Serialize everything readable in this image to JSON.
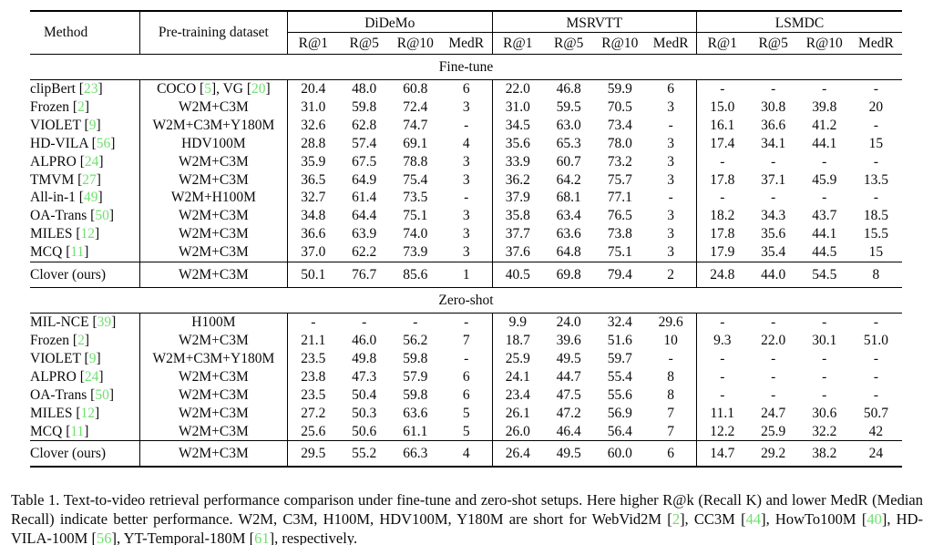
{
  "page": {
    "background": "#ffffff",
    "text_color": "#0a0a0a",
    "citation_color": "#6fe06f"
  },
  "table": {
    "header": {
      "method": "Method",
      "dataset": "Pre-training dataset"
    },
    "groups": [
      {
        "name": "DiDeMo",
        "metrics": [
          "R@1",
          "R@5",
          "R@10",
          "MedR"
        ]
      },
      {
        "name": "MSRVTT",
        "metrics": [
          "R@1",
          "R@5",
          "R@10",
          "MedR"
        ]
      },
      {
        "name": "LSMDC",
        "metrics": [
          "R@1",
          "R@5",
          "R@10",
          "MedR"
        ]
      }
    ],
    "sections": [
      {
        "label": "Fine-tune",
        "rows": [
          {
            "method": "clipBert [23]",
            "dataset": "COCO [5], VG [20]",
            "values": [
              "20.4",
              "48.0",
              "60.8",
              "6",
              "22.0",
              "46.8",
              "59.9",
              "6",
              "-",
              "-",
              "-",
              "-"
            ]
          },
          {
            "method": "Frozen [2]",
            "dataset": "W2M+C3M",
            "values": [
              "31.0",
              "59.8",
              "72.4",
              "3",
              "31.0",
              "59.5",
              "70.5",
              "3",
              "15.0",
              "30.8",
              "39.8",
              "20"
            ]
          },
          {
            "method": "VIOLET [9]",
            "dataset": "W2M+C3M+Y180M",
            "values": [
              "32.6",
              "62.8",
              "74.7",
              "-",
              "34.5",
              "63.0",
              "73.4",
              "-",
              "16.1",
              "36.6",
              "41.2",
              "-"
            ]
          },
          {
            "method": "HD-VILA [56]",
            "dataset": "HDV100M",
            "values": [
              "28.8",
              "57.4",
              "69.1",
              "4",
              "35.6",
              "65.3",
              "78.0",
              "3",
              "17.4",
              "34.1",
              "44.1",
              "15"
            ]
          },
          {
            "method": "ALPRO [24]",
            "dataset": "W2M+C3M",
            "values": [
              "35.9",
              "67.5",
              "78.8",
              "3",
              "33.9",
              "60.7",
              "73.2",
              "3",
              "-",
              "-",
              "-",
              "-"
            ]
          },
          {
            "method": "TMVM [27]",
            "dataset": "W2M+C3M",
            "values": [
              "36.5",
              "64.9",
              "75.4",
              "3",
              "36.2",
              "64.2",
              "75.7",
              "3",
              "17.8",
              "37.1",
              "45.9",
              "13.5"
            ]
          },
          {
            "method": "All-in-1 [49]",
            "dataset": "W2M+H100M",
            "values": [
              "32.7",
              "61.4",
              "73.5",
              "-",
              "37.9",
              "68.1",
              "77.1",
              "-",
              "-",
              "-",
              "-",
              "-"
            ]
          },
          {
            "method": "OA-Trans [50]",
            "dataset": "W2M+C3M",
            "values": [
              "34.8",
              "64.4",
              "75.1",
              "3",
              "35.8",
              "63.4",
              "76.5",
              "3",
              "18.2",
              "34.3",
              "43.7",
              "18.5"
            ]
          },
          {
            "method": "MILES [12]",
            "dataset": "W2M+C3M",
            "values": [
              "36.6",
              "63.9",
              "74.0",
              "3",
              "37.7",
              "63.6",
              "73.8",
              "3",
              "17.8",
              "35.6",
              "44.1",
              "15.5"
            ]
          },
          {
            "method": "MCQ [11]",
            "dataset": "W2M+C3M",
            "values": [
              "37.0",
              "62.2",
              "73.9",
              "3",
              "37.6",
              "64.8",
              "75.1",
              "3",
              "17.9",
              "35.4",
              "44.5",
              "15"
            ]
          }
        ],
        "ours_row": {
          "method": "Clover (ours)",
          "dataset": "W2M+C3M",
          "values": [
            "50.1",
            "76.7",
            "85.6",
            "1",
            "40.5",
            "69.8",
            "79.4",
            "2",
            "24.8",
            "44.0",
            "54.5",
            "8"
          ]
        }
      },
      {
        "label": "Zero-shot",
        "rows": [
          {
            "method": "MIL-NCE [39]",
            "dataset": "H100M",
            "values": [
              "-",
              "-",
              "-",
              "-",
              "9.9",
              "24.0",
              "32.4",
              "29.6",
              "-",
              "-",
              "-",
              "-"
            ]
          },
          {
            "method": "Frozen [2]",
            "dataset": "W2M+C3M",
            "values": [
              "21.1",
              "46.0",
              "56.2",
              "7",
              "18.7",
              "39.6",
              "51.6",
              "10",
              "9.3",
              "22.0",
              "30.1",
              "51.0"
            ]
          },
          {
            "method": "VIOLET [9]",
            "dataset": "W2M+C3M+Y180M",
            "values": [
              "23.5",
              "49.8",
              "59.8",
              "-",
              "25.9",
              "49.5",
              "59.7",
              "-",
              "-",
              "-",
              "-",
              "-"
            ],
            "bold_indices": [
              5
            ]
          },
          {
            "method": "ALPRO [24]",
            "dataset": "W2M+C3M",
            "values": [
              "23.8",
              "47.3",
              "57.9",
              "6",
              "24.1",
              "44.7",
              "55.4",
              "8",
              "-",
              "-",
              "-",
              "-"
            ]
          },
          {
            "method": "OA-Trans [50]",
            "dataset": "W2M+C3M",
            "values": [
              "23.5",
              "50.4",
              "59.8",
              "6",
              "23.4",
              "47.5",
              "55.6",
              "8",
              "-",
              "-",
              "-",
              "-"
            ]
          },
          {
            "method": "MILES [12]",
            "dataset": "W2M+C3M",
            "values": [
              "27.2",
              "50.3",
              "63.6",
              "5",
              "26.1",
              "47.2",
              "56.9",
              "7",
              "11.1",
              "24.7",
              "30.6",
              "50.7"
            ]
          },
          {
            "method": "MCQ [11]",
            "dataset": "W2M+C3M",
            "values": [
              "25.6",
              "50.6",
              "61.1",
              "5",
              "26.0",
              "46.4",
              "56.4",
              "7",
              "12.2",
              "25.9",
              "32.2",
              "42"
            ]
          }
        ],
        "ours_row": {
          "method": "Clover (ours)",
          "dataset": "W2M+C3M",
          "values": [
            "29.5",
            "55.2",
            "66.3",
            "4",
            "26.4",
            "49.5",
            "60.0",
            "6",
            "14.7",
            "29.2",
            "38.2",
            "24"
          ]
        }
      }
    ]
  },
  "caption": {
    "text": "Table 1. Text-to-video retrieval performance comparison under fine-tune and zero-shot setups. Here higher R@k (Recall K) and lower MedR (Median Recall) indicate better performance. W2M, C3M, H100M, HDV100M, Y180M are short for WebVid2M [2], CC3M [44], HowTo100M [40], HD-VILA-100M [56], YT-Temporal-180M [61], respectively."
  }
}
